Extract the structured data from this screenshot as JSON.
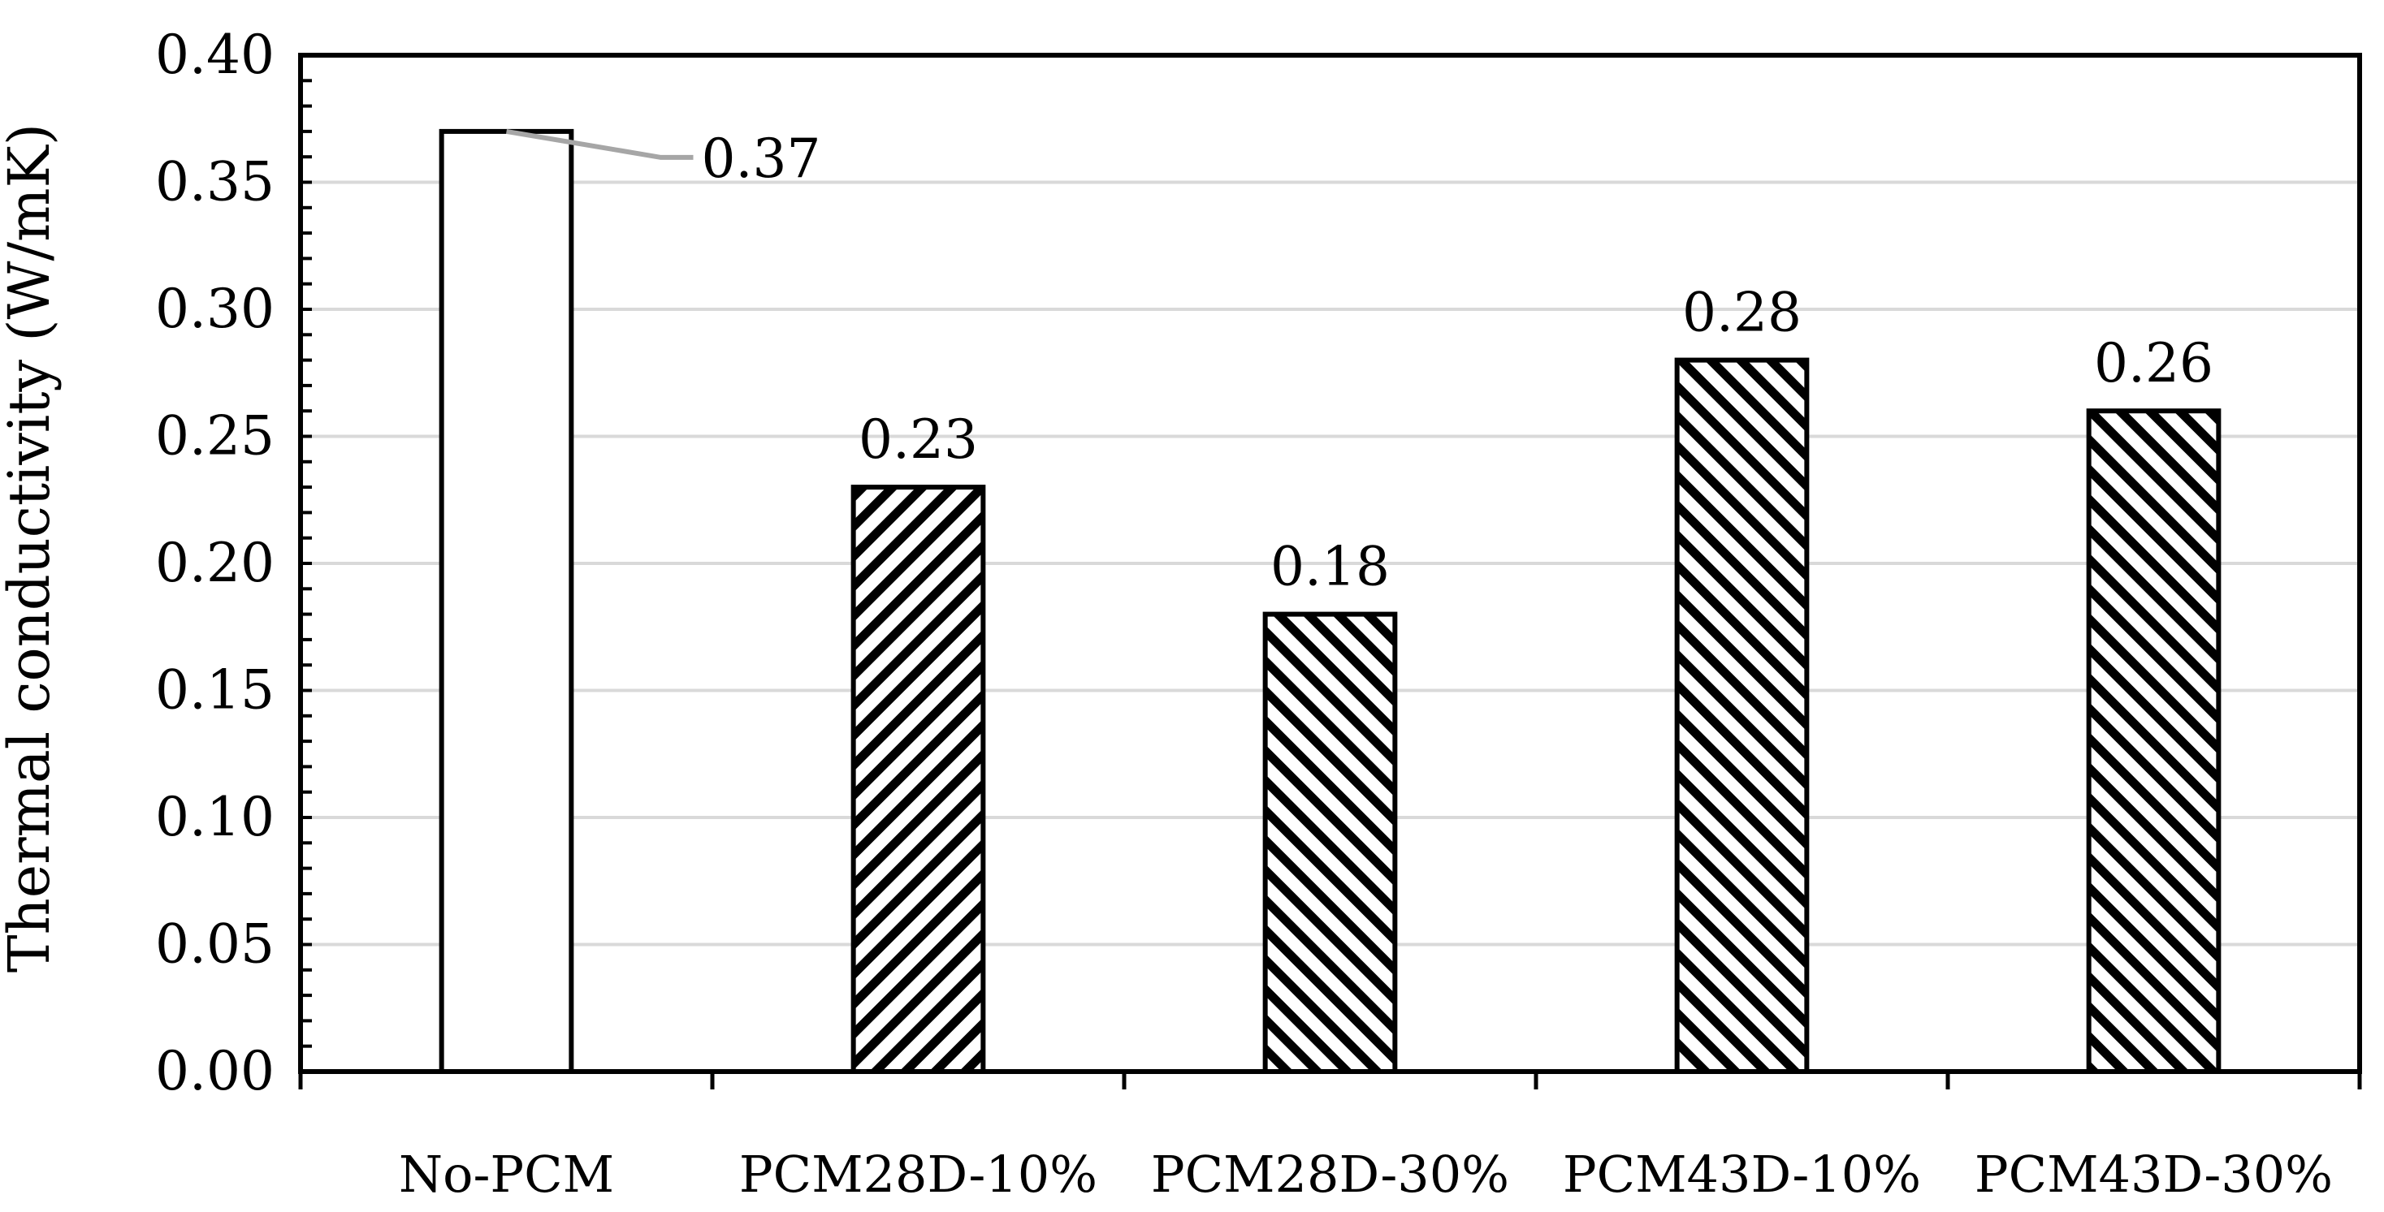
{
  "chart_data": {
    "type": "bar",
    "title": "",
    "xlabel": "",
    "ylabel": "Thermal conductivity  (W/mK)",
    "categories": [
      "No-PCM",
      "PCM28D-10%",
      "PCM28D-30%",
      "PCM43D-10%",
      "PCM43D-30%"
    ],
    "values": [
      0.37,
      0.23,
      0.18,
      0.28,
      0.26
    ],
    "data_labels": [
      "0.37",
      "0.23",
      "0.18",
      "0.28",
      "0.26"
    ],
    "bar_fills": [
      "none",
      "hatch-up",
      "hatch-down",
      "hatch-down",
      "hatch-down"
    ],
    "ylim": [
      0,
      0.4
    ],
    "yticks": [
      0,
      0.05,
      0.1,
      0.15,
      0.2,
      0.25,
      0.3,
      0.35,
      0.4
    ],
    "ytick_labels": [
      "0.00",
      "0.05",
      "0.10",
      "0.15",
      "0.20",
      "0.25",
      "0.30",
      "0.35",
      "0.40"
    ],
    "grid": true,
    "legend": "none",
    "colors": {
      "bar_stroke": "#000000",
      "grid": "#d9d9d9",
      "leader_line": "#a6a6a6",
      "axis": "#000000"
    }
  }
}
